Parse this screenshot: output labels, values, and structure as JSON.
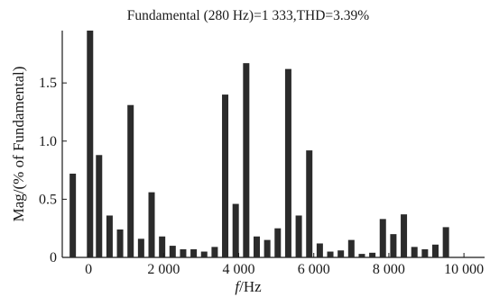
{
  "chart_data": {
    "type": "bar",
    "title": "Fundamental (280 Hz)=1 333,THD=3.39%",
    "xlabel_var": "f",
    "xlabel_unit": "/Hz",
    "ylabel": "Mag/(% of Fundamental)",
    "xlim": [
      -700,
      10550
    ],
    "ylim": [
      0,
      1.95
    ],
    "x_ticks": [
      {
        "value": 0,
        "label": "0"
      },
      {
        "value": 2000,
        "label": "2 000"
      },
      {
        "value": 4000,
        "label": "4 000"
      },
      {
        "value": 6000,
        "label": "6 000"
      },
      {
        "value": 8000,
        "label": "8 000"
      },
      {
        "value": 10000,
        "label": "10 000"
      }
    ],
    "y_ticks": [
      {
        "value": 0,
        "label": "0"
      },
      {
        "value": 0.5,
        "label": "0.5"
      },
      {
        "value": 1.0,
        "label": "1.0"
      },
      {
        "value": 1.5,
        "label": "1.5"
      }
    ],
    "bar_color": "#2b2b2b",
    "x": [
      -420,
      40,
      280,
      560,
      840,
      1120,
      1400,
      1680,
      1960,
      2240,
      2520,
      2800,
      3080,
      3360,
      3640,
      3920,
      4200,
      4480,
      4760,
      5040,
      5320,
      5600,
      5880,
      6160,
      6440,
      6720,
      7000,
      7280,
      7560,
      7840,
      8120,
      8400,
      8680,
      8960,
      9240,
      9520,
      9800,
      10080
    ],
    "values": [
      0.72,
      1.95,
      0.88,
      0.36,
      0.24,
      1.31,
      0.16,
      0.56,
      0.18,
      0.1,
      0.07,
      0.07,
      0.05,
      0.09,
      1.4,
      0.46,
      1.67,
      0.18,
      0.15,
      0.25,
      1.62,
      0.36,
      0.92,
      0.12,
      0.05,
      0.06,
      0.15,
      0.03,
      0.04,
      0.33,
      0.2,
      0.37,
      0.09,
      0.07,
      0.11,
      0.26,
      0.0,
      0.0
    ]
  }
}
